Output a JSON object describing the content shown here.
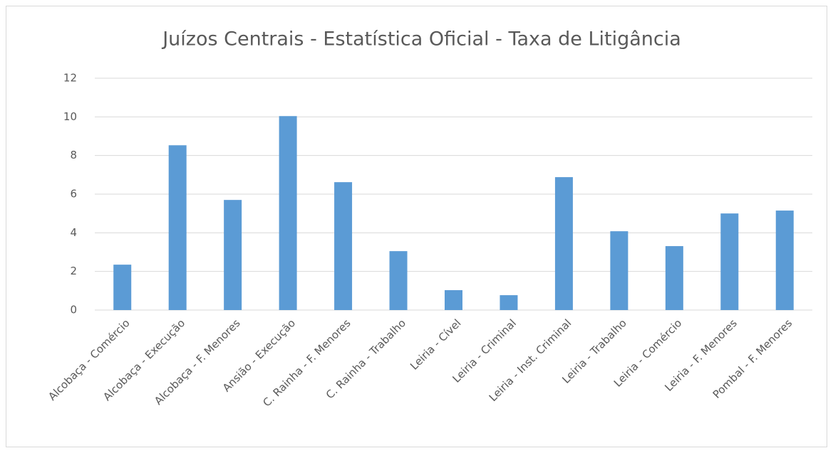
{
  "chart_data": {
    "type": "bar",
    "title": "Juízos Centrais - Estatística Oficial - Taxa de Litigância",
    "categories": [
      "Alcobaça - Comércio",
      "Alcobaça - Execução",
      "Alcobaça - F. Menores",
      "Ansião - Execução",
      "C. Rainha - F. Menores",
      "C. Rainha - Trabalho",
      "Leiria - Cível",
      "Leiria - Criminal",
      "Leiria - Inst. Criminal",
      "Leiria - Trabalho",
      "Leiria - Comércio",
      "Leiria - F. Menores",
      "Pombal - F. Menores"
    ],
    "values": [
      2.35,
      8.53,
      5.7,
      10.04,
      6.62,
      3.05,
      1.03,
      0.77,
      6.88,
      4.08,
      3.31,
      5.0,
      5.15
    ],
    "color": "#5b9bd5",
    "ylim": [
      0,
      12
    ],
    "yticks": [
      0,
      2,
      4,
      6,
      8,
      10,
      12
    ],
    "grid": true
  }
}
